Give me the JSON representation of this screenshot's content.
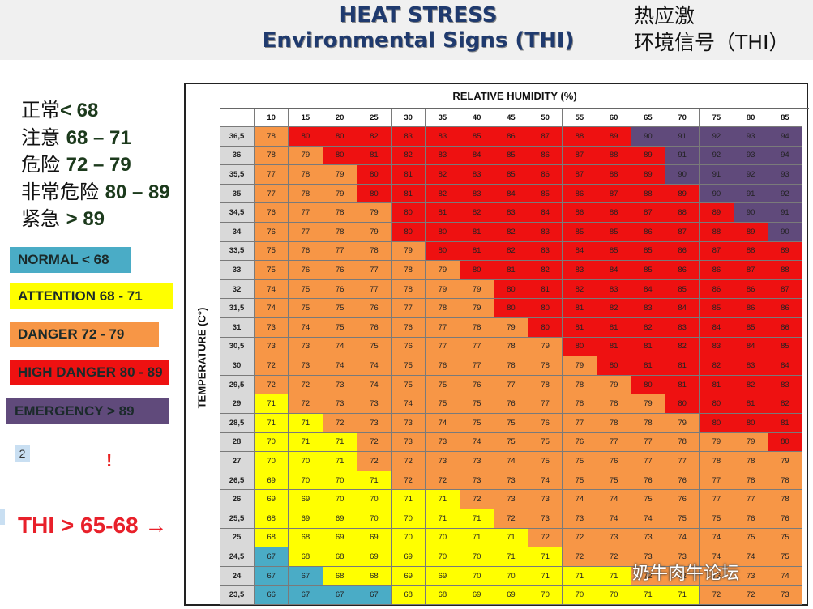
{
  "title_en": {
    "line1": "HEAT STRESS",
    "line2": "Environmental Signs (THI)"
  },
  "title_zh": {
    "line1": "热应激",
    "line2": "环境信号（THI）"
  },
  "zh_levels": [
    {
      "label": "正常",
      "range": "< 68"
    },
    {
      "label": "注意",
      "range": "68 – 71"
    },
    {
      "label": "危险",
      "range": "72 – 79"
    },
    {
      "label": "非常危险",
      "range": "80 – 89"
    },
    {
      "label": "紧急",
      "range": " > 89"
    }
  ],
  "legend": [
    {
      "label": "NORMAL < 68",
      "color": "#4aacc6"
    },
    {
      "label": "ATTENTION 68 - 71",
      "color": "#ffff00"
    },
    {
      "label": "DANGER 72 - 79",
      "color": "#f79646"
    },
    {
      "label": "HIGH DANGER 80 - 89",
      "color": "#ee1111"
    },
    {
      "label": "EMERGENCY >  89",
      "color": "#604a7b"
    }
  ],
  "page_badge": "2",
  "exclamation": "!",
  "thi_note": "THI > 65-68 →",
  "watermark": "奶牛肉牛论坛",
  "chart_data": {
    "type": "heatmap",
    "title": "HEAT STRESS Environmental Signs (THI)",
    "xlabel": "RELATIVE HUMIDITY (%)",
    "ylabel": "TEMPERATURE (C°)",
    "x": [
      "10",
      "15",
      "20",
      "25",
      "30",
      "35",
      "40",
      "45",
      "50",
      "55",
      "60",
      "65",
      "70",
      "75",
      "80",
      "85"
    ],
    "y": [
      "36,5",
      "36",
      "35,5",
      "35",
      "34,5",
      "34",
      "33,5",
      "33",
      "32",
      "31,5",
      "31",
      "30,5",
      "30",
      "29,5",
      "29",
      "28,5",
      "28",
      "27",
      "26,5",
      "26",
      "25,5",
      "25",
      "24,5",
      "24",
      "23,5"
    ],
    "values": [
      [
        78,
        80,
        80,
        82,
        83,
        83,
        85,
        86,
        87,
        88,
        89,
        90,
        91,
        92,
        93,
        94
      ],
      [
        78,
        79,
        80,
        81,
        82,
        83,
        84,
        85,
        86,
        87,
        88,
        89,
        91,
        92,
        93,
        94
      ],
      [
        77,
        78,
        79,
        80,
        81,
        82,
        83,
        85,
        86,
        87,
        88,
        89,
        90,
        91,
        92,
        93
      ],
      [
        77,
        78,
        79,
        80,
        81,
        82,
        83,
        84,
        85,
        86,
        87,
        88,
        89,
        90,
        91,
        92
      ],
      [
        76,
        77,
        78,
        79,
        80,
        81,
        82,
        83,
        84,
        86,
        86,
        87,
        88,
        89,
        90,
        91
      ],
      [
        76,
        77,
        78,
        79,
        80,
        80,
        81,
        82,
        83,
        85,
        85,
        86,
        87,
        88,
        89,
        90
      ],
      [
        75,
        76,
        77,
        78,
        79,
        80,
        81,
        82,
        83,
        84,
        85,
        85,
        86,
        87,
        88,
        89
      ],
      [
        75,
        76,
        76,
        77,
        78,
        79,
        80,
        81,
        82,
        83,
        84,
        85,
        86,
        86,
        87,
        88
      ],
      [
        74,
        75,
        76,
        77,
        78,
        79,
        79,
        80,
        81,
        82,
        83,
        84,
        85,
        86,
        86,
        87
      ],
      [
        74,
        75,
        75,
        76,
        77,
        78,
        79,
        80,
        80,
        81,
        82,
        83,
        84,
        85,
        86,
        86
      ],
      [
        73,
        74,
        75,
        76,
        76,
        77,
        78,
        79,
        80,
        81,
        81,
        82,
        83,
        84,
        85,
        86
      ],
      [
        73,
        73,
        74,
        75,
        76,
        77,
        77,
        78,
        79,
        80,
        81,
        81,
        82,
        83,
        84,
        85
      ],
      [
        72,
        73,
        74,
        74,
        75,
        76,
        77,
        78,
        78,
        79,
        80,
        81,
        81,
        82,
        83,
        84
      ],
      [
        72,
        72,
        73,
        74,
        75,
        75,
        76,
        77,
        78,
        78,
        79,
        80,
        81,
        81,
        82,
        83
      ],
      [
        71,
        72,
        73,
        73,
        74,
        75,
        75,
        76,
        77,
        78,
        78,
        79,
        80,
        80,
        81,
        82
      ],
      [
        71,
        71,
        72,
        73,
        73,
        74,
        75,
        75,
        76,
        77,
        78,
        78,
        79,
        80,
        80,
        81
      ],
      [
        70,
        71,
        71,
        72,
        73,
        73,
        74,
        75,
        75,
        76,
        77,
        77,
        78,
        79,
        79,
        80
      ],
      [
        70,
        70,
        71,
        72,
        72,
        73,
        73,
        74,
        75,
        75,
        76,
        77,
        77,
        78,
        78,
        79
      ],
      [
        69,
        70,
        70,
        71,
        72,
        72,
        73,
        73,
        74,
        75,
        75,
        76,
        76,
        77,
        78,
        78
      ],
      [
        69,
        69,
        70,
        70,
        71,
        71,
        72,
        73,
        73,
        74,
        74,
        75,
        76,
        77,
        77,
        78
      ],
      [
        68,
        69,
        69,
        70,
        70,
        71,
        71,
        72,
        73,
        73,
        74,
        74,
        75,
        75,
        76,
        76
      ],
      [
        68,
        68,
        69,
        69,
        70,
        70,
        71,
        71,
        72,
        72,
        73,
        73,
        74,
        74,
        75,
        75
      ],
      [
        67,
        68,
        68,
        69,
        69,
        70,
        70,
        71,
        71,
        72,
        72,
        73,
        73,
        74,
        74,
        75
      ],
      [
        67,
        67,
        68,
        68,
        69,
        69,
        70,
        70,
        71,
        71,
        71,
        72,
        72,
        73,
        73,
        74
      ],
      [
        66,
        67,
        67,
        67,
        68,
        68,
        69,
        69,
        70,
        70,
        70,
        71,
        71,
        72,
        72,
        73
      ]
    ],
    "thresholds": [
      {
        "min": null,
        "max": 67,
        "color": "#4aacc6"
      },
      {
        "min": 68,
        "max": 71,
        "color": "#ffff00"
      },
      {
        "min": 72,
        "max": 79,
        "color": "#f79646"
      },
      {
        "min": 80,
        "max": 89,
        "color": "#ee1111"
      },
      {
        "min": 90,
        "max": null,
        "color": "#604a7b"
      }
    ]
  }
}
